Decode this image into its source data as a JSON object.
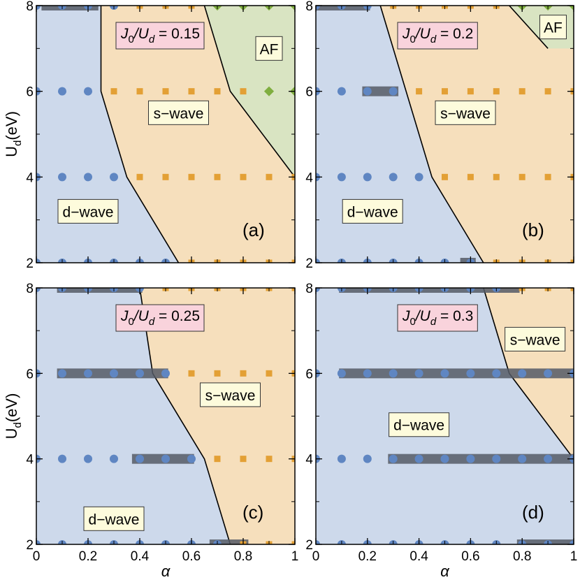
{
  "colors": {
    "d_wave": "#cdd9eb",
    "s_wave": "#f6dfbc",
    "af": "#d9e4c2",
    "d_marker": "#5f86c2",
    "s_marker": "#e3a035",
    "af_marker": "#7fae3f",
    "coexist_bar": "#555a66",
    "phase_box": "#fdfbdc",
    "ratio_box": "#f9d3dc"
  },
  "axes": {
    "xlabel": "α",
    "ylabel_main": "U",
    "ylabel_sub": "d",
    "ylabel_unit": "(eV)",
    "x_ticks": [
      "0",
      "0.2",
      "0.4",
      "0.6",
      "0.8",
      "1"
    ],
    "y_ticks": [
      "2",
      "4",
      "6",
      "8"
    ]
  },
  "chart_data": [
    {
      "type": "scatter",
      "panel": "(a)",
      "ratio": {
        "prefix": "J",
        "sub1": "0",
        "slash": "/U",
        "sub2": "d",
        "value": " = 0.15"
      },
      "xlim": [
        0,
        1
      ],
      "ylim": [
        2,
        8
      ],
      "boundaries": {
        "d_s": [
          [
            0.25,
            8
          ],
          [
            0.25,
            6
          ],
          [
            0.35,
            4
          ],
          [
            0.55,
            2
          ]
        ],
        "s_af": [
          [
            0.65,
            8
          ],
          [
            0.75,
            6
          ],
          [
            1.0,
            4
          ]
        ]
      },
      "labels": [
        {
          "text": "d−wave",
          "x": 0.2,
          "y": 3.2
        },
        {
          "text": "s−wave",
          "x": 0.55,
          "y": 5.5
        },
        {
          "text": "AF",
          "x": 0.9,
          "y": 7.0
        }
      ],
      "points": [
        {
          "U": 8,
          "d": [
            0,
            0.1,
            0.2,
            0.3
          ],
          "s": [
            0.4,
            0.5,
            0.6
          ],
          "af": [
            0.7,
            0.8,
            0.9,
            1.0
          ]
        },
        {
          "U": 6,
          "d": [
            0,
            0.1,
            0.2
          ],
          "s": [
            0.3,
            0.4,
            0.5,
            0.6,
            0.7,
            0.8
          ],
          "af": [
            0.9,
            1.0
          ]
        },
        {
          "U": 4,
          "d": [
            0,
            0.1,
            0.2,
            0.3
          ],
          "s": [
            0.4,
            0.5,
            0.6,
            0.7,
            0.8,
            0.9,
            1.0
          ],
          "af": []
        },
        {
          "U": 2,
          "d": [
            0,
            0.1,
            0.2,
            0.3,
            0.4,
            0.5
          ],
          "s": [
            0.6,
            0.7,
            0.8,
            0.9,
            1.0
          ],
          "af": []
        }
      ],
      "coexist": [
        {
          "U": 8,
          "x": [
            0.02,
            0.24
          ]
        }
      ]
    },
    {
      "type": "scatter",
      "panel": "(b)",
      "ratio": {
        "prefix": "J",
        "sub1": "0",
        "slash": "/U",
        "sub2": "d",
        "value": " = 0.2"
      },
      "xlim": [
        0,
        1
      ],
      "ylim": [
        2,
        8
      ],
      "boundaries": {
        "d_s": [
          [
            0.25,
            8
          ],
          [
            0.45,
            4
          ],
          [
            0.65,
            2
          ]
        ],
        "s_af": [
          [
            0.75,
            8
          ],
          [
            0.9,
            7
          ]
        ]
      },
      "labels": [
        {
          "text": "d−wave",
          "x": 0.22,
          "y": 3.2
        },
        {
          "text": "s−wave",
          "x": 0.58,
          "y": 5.5
        },
        {
          "text": "AF",
          "x": 0.92,
          "y": 7.5
        }
      ],
      "points": [
        {
          "U": 8,
          "d": [
            0,
            0.1,
            0.2
          ],
          "s": [
            0.3,
            0.4,
            0.5,
            0.6,
            0.7
          ],
          "af": [
            0.8,
            0.9,
            1.0
          ]
        },
        {
          "U": 6,
          "d": [
            0,
            0.1,
            0.2,
            0.3
          ],
          "s": [
            0.4,
            0.5,
            0.6,
            0.7,
            0.8,
            0.9,
            1.0
          ],
          "af": []
        },
        {
          "U": 4,
          "d": [
            0,
            0.1,
            0.2,
            0.3,
            0.4
          ],
          "s": [
            0.5,
            0.6,
            0.7,
            0.8,
            0.9,
            1.0
          ],
          "af": []
        },
        {
          "U": 2,
          "d": [
            0,
            0.1,
            0.2,
            0.3,
            0.4,
            0.5,
            0.6
          ],
          "s": [
            0.7,
            0.8,
            0.9,
            1.0
          ],
          "af": []
        }
      ],
      "coexist": [
        {
          "U": 8,
          "x": [
            0.0,
            0.21
          ]
        },
        {
          "U": 6,
          "x": [
            0.18,
            0.32
          ]
        },
        {
          "U": 2,
          "x": [
            0.56,
            0.62
          ]
        }
      ]
    },
    {
      "type": "scatter",
      "panel": "(c)",
      "ratio": {
        "prefix": "J",
        "sub1": "0",
        "slash": "/U",
        "sub2": "d",
        "value": " = 0.25"
      },
      "xlim": [
        0,
        1
      ],
      "ylim": [
        2,
        8
      ],
      "boundaries": {
        "d_s": [
          [
            0.4,
            8
          ],
          [
            0.45,
            6
          ],
          [
            0.65,
            4
          ],
          [
            0.75,
            2
          ]
        ]
      },
      "labels": [
        {
          "text": "d−wave",
          "x": 0.3,
          "y": 2.6
        },
        {
          "text": "s−wave",
          "x": 0.75,
          "y": 5.5
        }
      ],
      "points": [
        {
          "U": 8,
          "d": [
            0,
            0.1,
            0.2,
            0.3,
            0.4
          ],
          "s": [
            0.5,
            0.6,
            0.7,
            0.8,
            0.9,
            1.0
          ],
          "af": []
        },
        {
          "U": 6,
          "d": [
            0,
            0.1,
            0.2,
            0.3,
            0.4,
            0.5
          ],
          "s": [
            0.6,
            0.7,
            0.8,
            0.9,
            1.0
          ],
          "af": []
        },
        {
          "U": 4,
          "d": [
            0,
            0.1,
            0.2,
            0.3,
            0.4,
            0.5,
            0.6
          ],
          "s": [
            0.7,
            0.8,
            0.9,
            1.0
          ],
          "af": []
        },
        {
          "U": 2,
          "d": [
            0,
            0.1,
            0.2,
            0.3,
            0.4,
            0.5,
            0.6,
            0.7
          ],
          "s": [
            0.8,
            0.9,
            1.0
          ],
          "af": []
        }
      ],
      "coexist": [
        {
          "U": 8,
          "x": [
            0.08,
            0.41
          ]
        },
        {
          "U": 6,
          "x": [
            0.08,
            0.51
          ]
        },
        {
          "U": 4,
          "x": [
            0.37,
            0.61
          ]
        },
        {
          "U": 2,
          "x": [
            0.67,
            0.82
          ]
        }
      ]
    },
    {
      "type": "scatter",
      "panel": "(d)",
      "ratio": {
        "prefix": "J",
        "sub1": "0",
        "slash": "/U",
        "sub2": "d",
        "value": " = 0.3"
      },
      "xlim": [
        0,
        1
      ],
      "ylim": [
        2,
        8
      ],
      "boundaries": {
        "d_s": [
          [
            0.65,
            8
          ],
          [
            0.75,
            6
          ],
          [
            1.0,
            4
          ]
        ]
      },
      "labels": [
        {
          "text": "d−wave",
          "x": 0.4,
          "y": 4.8
        },
        {
          "text": "s−wave",
          "x": 0.85,
          "y": 6.8
        }
      ],
      "points": [
        {
          "U": 8,
          "d": [
            0,
            0.1,
            0.2,
            0.3,
            0.4,
            0.5,
            0.6,
            0.7
          ],
          "s": [
            0.8,
            0.9,
            1.0
          ],
          "af": []
        },
        {
          "U": 6,
          "d": [
            0,
            0.1,
            0.2,
            0.3,
            0.4,
            0.5,
            0.6,
            0.7,
            0.8,
            0.9,
            1.0
          ],
          "s": [],
          "af": []
        },
        {
          "U": 4,
          "d": [
            0,
            0.1,
            0.2,
            0.3,
            0.4,
            0.5,
            0.6,
            0.7,
            0.8,
            0.9,
            1.0
          ],
          "s": [],
          "af": []
        },
        {
          "U": 2,
          "d": [
            0,
            0.1,
            0.2,
            0.3,
            0.4,
            0.5,
            0.6,
            0.7,
            0.8,
            0.9,
            1.0
          ],
          "s": [],
          "af": []
        }
      ],
      "coexist": [
        {
          "U": 8,
          "x": [
            0.09,
            0.79
          ]
        },
        {
          "U": 6,
          "x": [
            0.09,
            1.0
          ]
        },
        {
          "U": 4,
          "x": [
            0.28,
            1.0
          ]
        },
        {
          "U": 2,
          "x": [
            0.78,
            1.0
          ]
        }
      ]
    }
  ]
}
